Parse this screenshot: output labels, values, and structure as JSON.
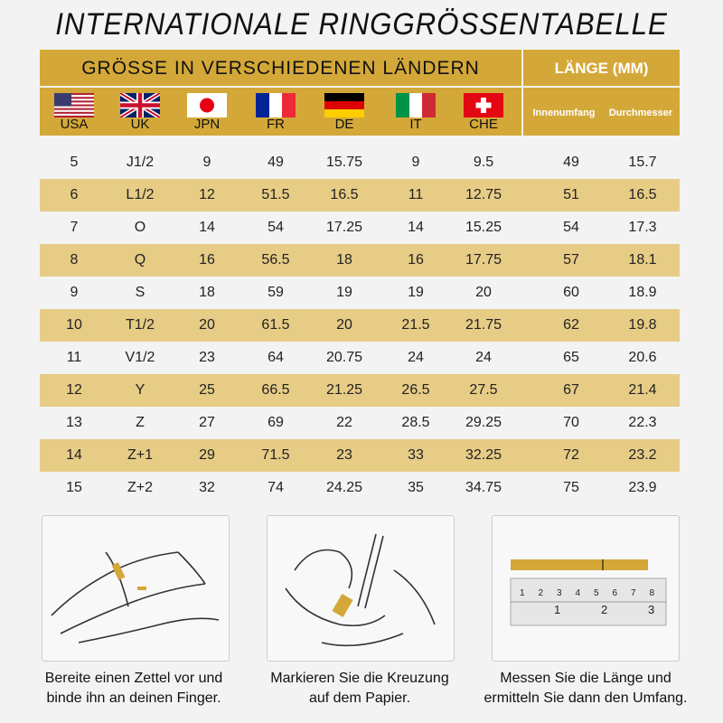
{
  "title": "INTERNATIONALE RINGGRÖSSENTABELLE",
  "header": {
    "countries_title": "GRÖSSE IN VERSCHIEDENEN LÄNDERN",
    "length_title": "LÄNGE (MM)",
    "countries": [
      "USA",
      "UK",
      "JPN",
      "FR",
      "DE",
      "IT",
      "CHE"
    ],
    "length_columns": [
      "Innenumfang",
      "Durchmesser"
    ]
  },
  "colors": {
    "gold": "#d4a838",
    "stripe": "#e7cc86"
  },
  "rows": [
    [
      "5",
      "J1/2",
      "9",
      "49",
      "15.75",
      "9",
      "9.5",
      "49",
      "15.7"
    ],
    [
      "6",
      "L1/2",
      "12",
      "51.5",
      "16.5",
      "11",
      "12.75",
      "51",
      "16.5"
    ],
    [
      "7",
      "O",
      "14",
      "54",
      "17.25",
      "14",
      "15.25",
      "54",
      "17.3"
    ],
    [
      "8",
      "Q",
      "16",
      "56.5",
      "18",
      "16",
      "17.75",
      "57",
      "18.1"
    ],
    [
      "9",
      "S",
      "18",
      "59",
      "19",
      "19",
      "20",
      "60",
      "18.9"
    ],
    [
      "10",
      "T1/2",
      "20",
      "61.5",
      "20",
      "21.5",
      "21.75",
      "62",
      "19.8"
    ],
    [
      "11",
      "V1/2",
      "23",
      "64",
      "20.75",
      "24",
      "24",
      "65",
      "20.6"
    ],
    [
      "12",
      "Y",
      "25",
      "66.5",
      "21.25",
      "26.5",
      "27.5",
      "67",
      "21.4"
    ],
    [
      "13",
      "Z",
      "27",
      "69",
      "22",
      "28.5",
      "29.25",
      "70",
      "22.3"
    ],
    [
      "14",
      "Z+1",
      "29",
      "71.5",
      "23",
      "33",
      "32.25",
      "72",
      "23.2"
    ],
    [
      "15",
      "Z+2",
      "32",
      "74",
      "24.25",
      "35",
      "34.75",
      "75",
      "23.9"
    ]
  ],
  "steps": [
    {
      "line1": "Bereite einen Zettel vor und",
      "line2": "binde ihn an deinen Finger."
    },
    {
      "line1": "Markieren Sie die Kreuzung",
      "line2": "auf dem Papier."
    },
    {
      "line1": "Messen Sie die Länge und",
      "line2": "ermitteln Sie dann den Umfang."
    }
  ],
  "ruler": {
    "top_ticks": [
      "1",
      "2",
      "3",
      "4",
      "5",
      "6",
      "7",
      "8"
    ],
    "bottom_ticks": [
      "1",
      "2",
      "3"
    ]
  }
}
